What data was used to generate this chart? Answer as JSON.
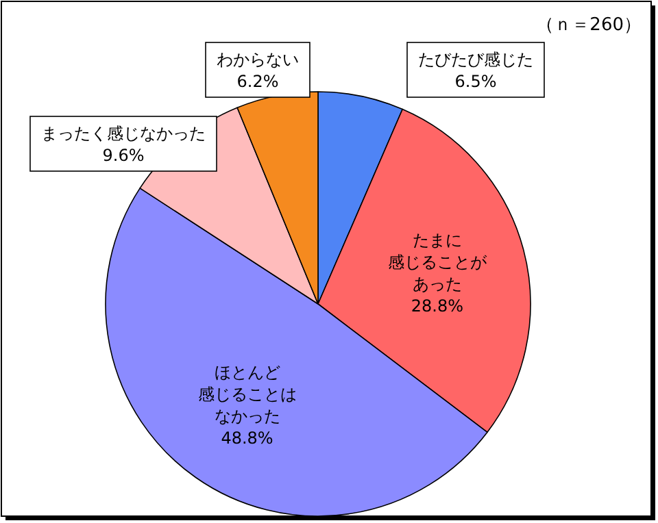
{
  "chart_data": {
    "type": "pie",
    "categories": [
      "たびたび感じた",
      "たまに感じることがあった",
      "ほとんど感じることはなかった",
      "まったく感じなかった",
      "わからない"
    ],
    "values": [
      6.5,
      28.8,
      48.8,
      9.6,
      6.2
    ],
    "value_labels": [
      "6.5%",
      "28.8%",
      "48.8%",
      "9.6%",
      "6.2%"
    ],
    "colors": [
      "#4f84f5",
      "#ff6666",
      "#8b8bff",
      "#ffbcbc",
      "#f58a1f"
    ],
    "annotations": [
      "（ｎ＝260）"
    ],
    "legend": false
  }
}
